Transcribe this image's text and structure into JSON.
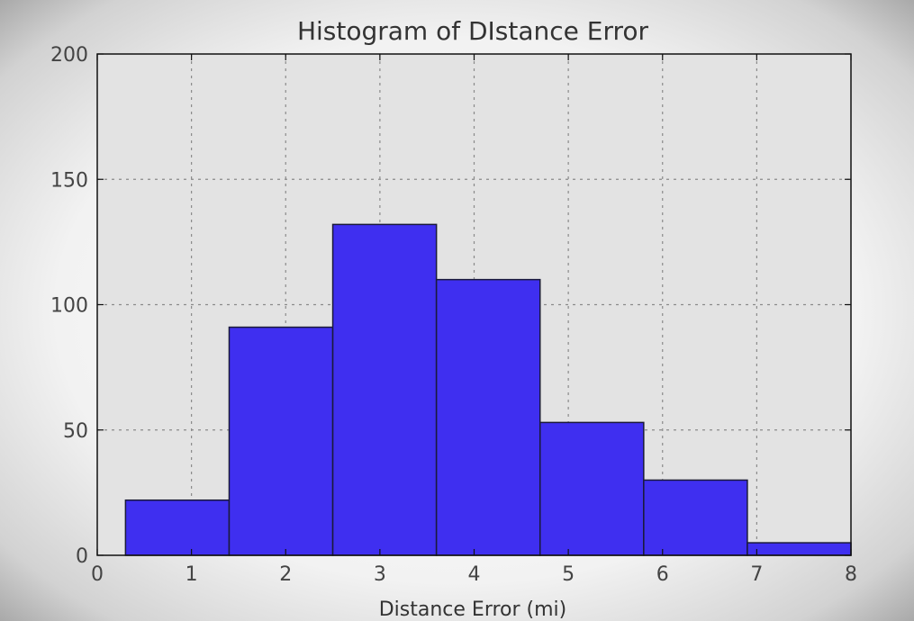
{
  "chart_data": {
    "type": "bar",
    "title": "Histogram of DIstance Error",
    "xlabel": "Distance Error (mi)",
    "ylabel": "",
    "xlim": [
      0,
      8
    ],
    "ylim": [
      0,
      200
    ],
    "xticks": [
      "0",
      "1",
      "2",
      "3",
      "4",
      "5",
      "6",
      "7",
      "8"
    ],
    "yticks": [
      "0",
      "50",
      "100",
      "150",
      "200"
    ],
    "grid": true,
    "bins": [
      {
        "x0": 0.3,
        "x1": 1.4,
        "value": 22
      },
      {
        "x0": 1.4,
        "x1": 2.5,
        "value": 91
      },
      {
        "x0": 2.5,
        "x1": 3.6,
        "value": 132
      },
      {
        "x0": 3.6,
        "x1": 4.7,
        "value": 110
      },
      {
        "x0": 4.7,
        "x1": 5.8,
        "value": 53
      },
      {
        "x0": 5.8,
        "x1": 6.9,
        "value": 30
      },
      {
        "x0": 6.9,
        "x1": 8.0,
        "value": 5
      }
    ],
    "colors": {
      "bar_fill": "#3f2ff0",
      "bar_edge": "#1a1a3a",
      "plot_bg": "#e3e3e3",
      "grid": "#8a8a8a"
    }
  }
}
